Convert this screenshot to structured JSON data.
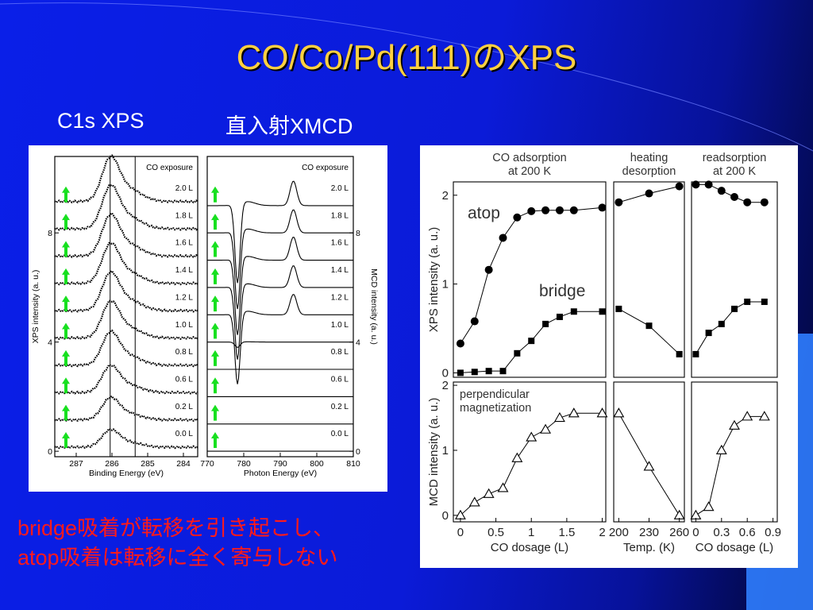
{
  "slide": {
    "title": "CO/Co/Pd(111)のXPS",
    "subtitle_left": "C1s XPS",
    "subtitle_right": "直入射XMCD",
    "conclusion_line1": "bridge吸着が転移を引き起こし、",
    "conclusion_line2": "atop吸着は転移に全く寄与しない",
    "colors": {
      "background": "#0a1fe8",
      "title": "#ffd040",
      "conclusion": "#ff1a1a",
      "arrow": "#18e020"
    }
  },
  "chart_data": [
    {
      "type": "line",
      "panel": "C1s XPS spectra",
      "title": "",
      "legend_label": "CO exposure",
      "xlabel": "Binding Energy (eV)",
      "ylabel": "XPS intensity (a. u.)",
      "x_ticks": [
        "287",
        "286",
        "285",
        "284"
      ],
      "y_ticks": [
        "0",
        "4",
        "8"
      ],
      "xlim": [
        287.6,
        283.6
      ],
      "ylim": [
        -0.2,
        10.8
      ],
      "reference_lines_ev": [
        286.05,
        285.35
      ],
      "series": [
        {
          "name": "0.0 L",
          "offset": 0.0,
          "peak": 0.55
        },
        {
          "name": "0.2 L",
          "offset": 1.0,
          "peak": 0.7
        },
        {
          "name": "0.6 L",
          "offset": 2.0,
          "peak": 0.85
        },
        {
          "name": "0.8 L",
          "offset": 3.0,
          "peak": 1.05
        },
        {
          "name": "1.0 L",
          "offset": 4.0,
          "peak": 1.15
        },
        {
          "name": "1.2 L",
          "offset": 5.0,
          "peak": 1.2
        },
        {
          "name": "1.4 L",
          "offset": 6.0,
          "peak": 1.25
        },
        {
          "name": "1.6 L",
          "offset": 7.0,
          "peak": 1.3
        },
        {
          "name": "1.8 L",
          "offset": 8.0,
          "peak": 1.35
        },
        {
          "name": "2.0 L",
          "offset": 9.0,
          "peak": 1.4
        }
      ]
    },
    {
      "type": "line",
      "panel": "normal-incidence XMCD spectra",
      "title": "",
      "legend_label": "CO exposure",
      "xlabel": "Photon Energy (eV)",
      "ylabel": "MCD intensity (a. u.)",
      "x_ticks": [
        "770",
        "780",
        "790",
        "800",
        "810"
      ],
      "y_ticks": [
        "0",
        "4",
        "8"
      ],
      "xlim": [
        770,
        810
      ],
      "ylim": [
        -0.2,
        10.8
      ],
      "series": [
        {
          "name": "0.0 L",
          "offset": 0.0,
          "l3": 0.0,
          "l2": 0.0
        },
        {
          "name": "0.2 L",
          "offset": 1.0,
          "l3": 0.0,
          "l2": 0.0
        },
        {
          "name": "0.6 L",
          "offset": 2.0,
          "l3": 0.0,
          "l2": 0.0
        },
        {
          "name": "0.8 L",
          "offset": 3.0,
          "l3": 0.0,
          "l2": 0.0
        },
        {
          "name": "1.0 L",
          "offset": 4.0,
          "l3": 0.2,
          "l2": 0.0
        },
        {
          "name": "1.2 L",
          "offset": 5.0,
          "l3": 2.6,
          "l2": 0.75
        },
        {
          "name": "1.4 L",
          "offset": 6.0,
          "l3": 2.7,
          "l2": 0.8
        },
        {
          "name": "1.6 L",
          "offset": 7.0,
          "l3": 2.8,
          "l2": 0.85
        },
        {
          "name": "1.8 L",
          "offset": 8.0,
          "l3": 2.85,
          "l2": 0.85
        },
        {
          "name": "2.0 L",
          "offset": 9.0,
          "l3": 2.9,
          "l2": 0.9
        }
      ]
    },
    {
      "type": "scatter",
      "panel": "CO adsorption at 200 K",
      "title": "CO adsorption\nat 200 K",
      "xlabel": "CO dosage (L)",
      "x_ticks": [
        "0",
        "0.5",
        "1",
        "1.5",
        "2"
      ],
      "xlim": [
        -0.1,
        2.05
      ],
      "xps": {
        "ylabel": "XPS intensity (a. u.)",
        "y_ticks": [
          "0",
          "1",
          "2"
        ],
        "ylim": [
          -0.05,
          2.15
        ],
        "series": [
          {
            "name": "atop",
            "marker": "circle",
            "x": [
              0,
              0.2,
              0.4,
              0.6,
              0.8,
              1.0,
              1.2,
              1.4,
              1.6,
              2.0
            ],
            "y": [
              0.33,
              0.58,
              1.16,
              1.52,
              1.75,
              1.82,
              1.83,
              1.83,
              1.83,
              1.86
            ]
          },
          {
            "name": "bridge",
            "marker": "square",
            "x": [
              0,
              0.2,
              0.4,
              0.6,
              0.8,
              1.0,
              1.2,
              1.4,
              1.6,
              2.0
            ],
            "y": [
              0.0,
              0.01,
              0.02,
              0.02,
              0.22,
              0.36,
              0.55,
              0.63,
              0.69,
              0.69
            ]
          }
        ]
      },
      "mcd": {
        "ylabel": "MCD intensity (a. u.)",
        "y_ticks": [
          "0",
          "1",
          "2"
        ],
        "ylim": [
          -0.1,
          2.05
        ],
        "annotation": "perpendicular\nmagnetization",
        "series": [
          {
            "name": "",
            "marker": "triangle",
            "x": [
              0,
              0.2,
              0.4,
              0.6,
              0.8,
              1.0,
              1.2,
              1.4,
              1.6,
              2.0
            ],
            "y": [
              0.0,
              0.2,
              0.33,
              0.42,
              0.88,
              1.2,
              1.32,
              1.5,
              1.57,
              1.57
            ]
          }
        ]
      }
    },
    {
      "type": "scatter",
      "panel": "heating desorption",
      "title": "heating\ndesorption",
      "xlabel": "Temp. (K)",
      "x_ticks": [
        "200",
        "230",
        "260"
      ],
      "xlim": [
        195,
        265
      ],
      "xps": {
        "ylim": [
          -0.05,
          2.15
        ],
        "series": [
          {
            "name": "atop",
            "marker": "circle",
            "x": [
              200,
              230,
              260
            ],
            "y": [
              1.92,
              2.02,
              2.1
            ]
          },
          {
            "name": "bridge",
            "marker": "square",
            "x": [
              200,
              230,
              260
            ],
            "y": [
              0.72,
              0.53,
              0.21
            ]
          }
        ]
      },
      "mcd": {
        "ylim": [
          -0.1,
          2.05
        ],
        "series": [
          {
            "name": "",
            "marker": "triangle",
            "x": [
              200,
              230,
              260
            ],
            "y": [
              1.57,
              0.75,
              0.0
            ]
          }
        ]
      }
    },
    {
      "type": "scatter",
      "panel": "readsorption at 200 K",
      "title": "readsorption\nat 200 K",
      "xlabel": "CO dosage (L)",
      "x_ticks": [
        "0",
        "0.3",
        "0.6",
        "0.9"
      ],
      "xlim": [
        -0.05,
        0.95
      ],
      "xps": {
        "ylim": [
          -0.05,
          2.15
        ],
        "series": [
          {
            "name": "atop",
            "marker": "circle",
            "x": [
              0,
              0.15,
              0.3,
              0.45,
              0.6,
              0.8
            ],
            "y": [
              2.12,
              2.12,
              2.05,
              1.98,
              1.92,
              1.92
            ]
          },
          {
            "name": "bridge",
            "marker": "square",
            "x": [
              0,
              0.15,
              0.3,
              0.45,
              0.6,
              0.8
            ],
            "y": [
              0.21,
              0.45,
              0.55,
              0.72,
              0.8,
              0.8
            ]
          }
        ]
      },
      "mcd": {
        "ylim": [
          -0.1,
          2.05
        ],
        "series": [
          {
            "name": "",
            "marker": "triangle",
            "x": [
              0,
              0.15,
              0.3,
              0.45,
              0.6,
              0.8
            ],
            "y": [
              0.0,
              0.13,
              1.0,
              1.38,
              1.52,
              1.52
            ]
          }
        ]
      }
    }
  ]
}
